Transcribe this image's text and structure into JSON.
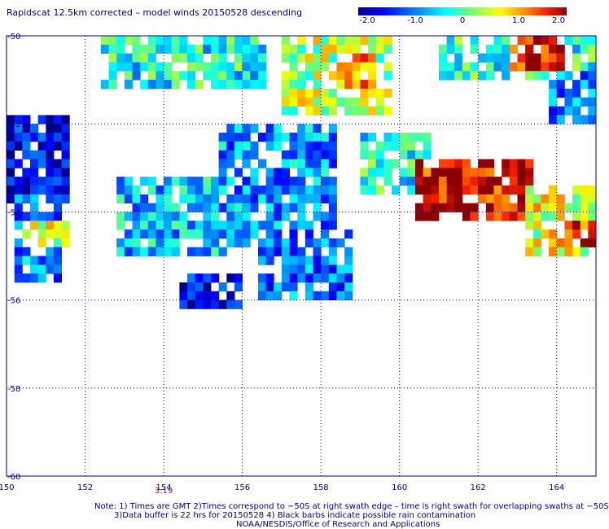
{
  "title": "Rapidscat 12.5km corrected – model winds 20150528 descending",
  "colorbar": {
    "tick_labels": [
      "-2.0",
      "-1.0",
      "0",
      "1.0",
      "2.0"
    ],
    "range": [
      -2.0,
      2.0
    ]
  },
  "chart_data": {
    "type": "heatmap",
    "title": "Rapidscat 12.5km corrected – model winds 20150528 descending",
    "xlabel": "",
    "ylabel": "",
    "x_ticks": [
      "150",
      "152",
      "154",
      "156",
      "158",
      "160",
      "162",
      "164"
    ],
    "y_ticks": [
      "-50",
      "-52",
      "-54",
      "-56",
      "-58",
      "-60"
    ],
    "xlim": [
      150,
      165
    ],
    "ylim": [
      -60,
      -50
    ],
    "grid": true,
    "value_range": [
      -2.0,
      2.0
    ],
    "time_label": {
      "x": 154,
      "text": "3:19"
    },
    "regions": [
      {
        "lon": [
          150.0,
          151.5
        ],
        "lat": [
          -53.8,
          -51.8
        ],
        "mean": -1.6
      },
      {
        "lon": [
          150.2,
          151.4
        ],
        "lat": [
          -55.5,
          -53.7
        ],
        "mean": -0.9
      },
      {
        "lon": [
          150.5,
          151.5
        ],
        "lat": [
          -54.8,
          -54.2
        ],
        "mean": 0.5
      },
      {
        "lon": [
          152.8,
          155.5
        ],
        "lat": [
          -55.0,
          -53.2
        ],
        "mean": -0.6
      },
      {
        "lon": [
          154.3,
          156.0
        ],
        "lat": [
          -56.3,
          -55.5
        ],
        "mean": -1.6
      },
      {
        "lon": [
          155.5,
          158.4
        ],
        "lat": [
          -54.8,
          -52.0
        ],
        "mean": -0.8
      },
      {
        "lon": [
          156.5,
          158.8
        ],
        "lat": [
          -56.0,
          -54.5
        ],
        "mean": -1.0
      },
      {
        "lon": [
          152.4,
          156.5
        ],
        "lat": [
          -51.3,
          -50.0
        ],
        "mean": -0.3
      },
      {
        "lon": [
          157.0,
          159.8
        ],
        "lat": [
          -51.8,
          -50.0
        ],
        "mean": 0.4
      },
      {
        "lon": [
          158.4,
          159.4
        ],
        "lat": [
          -51.2,
          -50.4
        ],
        "mean": 1.2
      },
      {
        "lon": [
          159.0,
          160.8
        ],
        "lat": [
          -53.5,
          -52.2
        ],
        "mean": -0.3
      },
      {
        "lon": [
          160.5,
          163.4
        ],
        "lat": [
          -54.2,
          -52.8
        ],
        "mean": 1.8
      },
      {
        "lon": [
          163.2,
          165.0
        ],
        "lat": [
          -55.0,
          -53.5
        ],
        "mean": 0.6
      },
      {
        "lon": [
          163.8,
          165.0
        ],
        "lat": [
          -54.8,
          -54.3
        ],
        "mean": 1.5
      },
      {
        "lon": [
          161.0,
          165.0
        ],
        "lat": [
          -51.0,
          -50.0
        ],
        "mean": -0.2
      },
      {
        "lon": [
          162.8,
          164.2
        ],
        "lat": [
          -50.8,
          -50.0
        ],
        "mean": 1.8
      },
      {
        "lon": [
          163.8,
          165.0
        ],
        "lat": [
          -52.0,
          -50.8
        ],
        "mean": -1.0
      }
    ]
  },
  "footer": {
    "line1": "Note: 1) Times are GMT 2)Times correspond to −50S at right swath edge – time is right swath for overlapping swaths at −50S",
    "line2": "3)Data buffer is 22 hrs for 20150528 4) Black barbs indicate possible rain contamination",
    "line3": "NOAA/NESDIS/Office of Research and Applications"
  }
}
